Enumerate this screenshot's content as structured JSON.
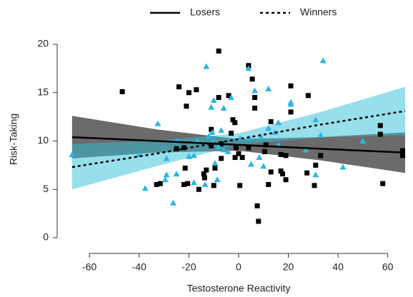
{
  "chart_data": {
    "type": "scatter",
    "xlabel": "Testosterone Reactivity",
    "ylabel": "Risk-Taking",
    "xlim": [
      -68,
      67
    ],
    "ylim": [
      -0.9,
      21.3
    ],
    "xticks": [
      -60,
      -40,
      -20,
      0,
      20,
      40,
      60
    ],
    "yticks": [
      0,
      5,
      10,
      15,
      20
    ],
    "legend": "top",
    "series": [
      {
        "name": "Losers",
        "color": "#000000",
        "marker": "square",
        "line_style": "solid",
        "x": [
          -46.8,
          -24,
          -20,
          -17,
          -21,
          -8,
          4,
          5.5,
          -8,
          -4,
          6.5,
          6.5,
          -1.5,
          -2.3,
          -3,
          -11,
          13,
          21,
          21,
          28,
          -25,
          -22,
          -11,
          -7,
          -1,
          4,
          0,
          1.5,
          -1.4,
          11,
          10.5,
          17,
          19,
          33,
          -21.5,
          -13,
          -9.5,
          -7,
          -14,
          -13.7,
          -16,
          -22,
          -20.5,
          -33,
          -31.5,
          -10,
          0.5,
          13,
          17,
          17.7,
          19,
          12,
          30.5,
          27.5,
          31,
          58,
          66,
          66,
          7.5,
          8,
          57,
          57
        ],
        "y": [
          15.1,
          15.6,
          15,
          15.3,
          13.6,
          19.3,
          17.8,
          16.4,
          14.5,
          14.7,
          13.4,
          14.5,
          11.9,
          12.2,
          10.8,
          11.2,
          12,
          13,
          15.7,
          14.7,
          9.2,
          9.3,
          9.5,
          9.7,
          9.3,
          9.3,
          8.7,
          8.3,
          8.3,
          9.6,
          8.9,
          8.6,
          8.5,
          8.5,
          7.2,
          7,
          7.2,
          8.2,
          6.6,
          6.2,
          5,
          5.5,
          5.6,
          5.5,
          5.6,
          5.4,
          5.4,
          6.8,
          6.9,
          6.6,
          6,
          5.5,
          5.4,
          6.7,
          7.5,
          5.6,
          8.5,
          9,
          3.3,
          1.7,
          10.7,
          11.6
        ],
        "fit": {
          "x": [
            -67,
            -33,
            0,
            33,
            67
          ],
          "y": [
            10.4,
            10,
            9.6,
            9.2,
            8.8
          ],
          "lower": [
            8.2,
            8.8,
            9,
            8,
            6.7
          ],
          "upper": [
            12.6,
            11.2,
            10.2,
            10.4,
            10.9
          ],
          "band_color": "#6b6b6b"
        }
      },
      {
        "name": "Winners",
        "color": "#2bb6e3",
        "marker": "triangle",
        "line_style": "dotted",
        "x": [
          34,
          -13,
          4,
          12,
          21,
          21,
          6.5,
          -11,
          -10,
          -6,
          -3,
          -32.5,
          -25,
          -16.7,
          -12,
          -10.6,
          -7,
          -10,
          -8,
          -6,
          -4.3,
          0.6,
          4.3,
          9,
          12,
          14.6,
          16,
          27,
          31,
          33,
          16,
          8.3,
          5,
          10,
          -9.5,
          -18,
          -20,
          -29,
          -40,
          -67,
          -29,
          -25,
          -29.5,
          -37.6,
          -26.3,
          -18,
          -13.5,
          -8.6,
          31,
          42,
          50
        ],
        "y": [
          18.3,
          17.7,
          17.5,
          15.4,
          14,
          13.8,
          15.2,
          13.5,
          14.2,
          13.4,
          14.5,
          11.8,
          10,
          10,
          10.5,
          10.9,
          11.1,
          9.9,
          9.4,
          9.1,
          8.9,
          10.3,
          10.3,
          10.4,
          11.3,
          10.9,
          11.9,
          9.1,
          12.2,
          10.6,
          9.6,
          8.3,
          7.6,
          7.4,
          7.7,
          8.5,
          8.4,
          8.2,
          8.6,
          8.6,
          6.5,
          6.6,
          6,
          5.1,
          3.6,
          5.7,
          5.5,
          6,
          6.5,
          7.3,
          10
        ],
        "fit": {
          "x": [
            -67,
            -33,
            0,
            33,
            67
          ],
          "y": [
            7.3,
            8.7,
            10.2,
            11.7,
            13.1
          ],
          "lower": [
            5,
            7.4,
            9.6,
            10.4,
            10.6
          ],
          "upper": [
            9.7,
            10,
            10.8,
            13,
            15.6
          ],
          "band_color": "#30c0d8"
        }
      }
    ]
  }
}
